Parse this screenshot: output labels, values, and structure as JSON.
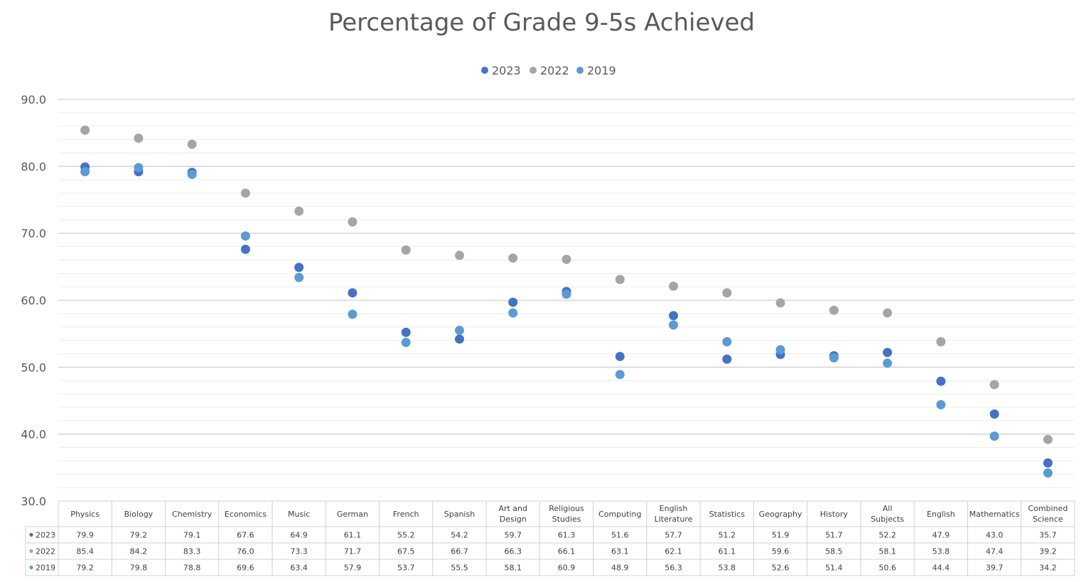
{
  "chart_data": {
    "type": "scatter",
    "title": "Percentage of Grade 9-5s Achieved",
    "ylim": [
      30,
      90
    ],
    "yticks": [
      "30.0",
      "40.0",
      "50.0",
      "60.0",
      "70.0",
      "80.0",
      "90.0"
    ],
    "grid": true,
    "legend_position": "top",
    "categories": [
      "Physics",
      "Biology",
      "Chemistry",
      "Economics",
      "Music",
      "German",
      "French",
      "Spanish",
      "Art and Design",
      "Religious Studies",
      "Computing",
      "English Literature",
      "Statistics",
      "Geography",
      "History",
      "All Subjects",
      "English",
      "Mathematics",
      "Combined Science"
    ],
    "series": [
      {
        "name": "2023",
        "color": "#4472C4",
        "values": [
          79.9,
          79.2,
          79.1,
          67.6,
          64.9,
          61.1,
          55.2,
          54.2,
          59.7,
          61.3,
          51.6,
          57.7,
          51.2,
          51.9,
          51.7,
          52.2,
          47.9,
          43.0,
          35.7
        ],
        "labels": [
          "79.9",
          "79.2",
          "79.1",
          "67.6",
          "64.9",
          "61.1",
          "55.2",
          "54.2",
          "59.7",
          "61.3",
          "51.6",
          "57.7",
          "51.2",
          "51.9",
          "51.7",
          "52.2",
          "47.9",
          "43.0",
          "35.7"
        ]
      },
      {
        "name": "2022",
        "color": "#A5A5A5",
        "values": [
          85.4,
          84.2,
          83.3,
          76.0,
          73.3,
          71.7,
          67.5,
          66.7,
          66.3,
          66.1,
          63.1,
          62.1,
          61.1,
          59.6,
          58.5,
          58.1,
          53.8,
          47.4,
          39.2
        ],
        "labels": [
          "85.4",
          "84.2",
          "83.3",
          "76.0",
          "73.3",
          "71.7",
          "67.5",
          "66.7",
          "66.3",
          "66.1",
          "63.1",
          "62.1",
          "61.1",
          "59.6",
          "58.5",
          "58.1",
          "53.8",
          "47.4",
          "39.2"
        ]
      },
      {
        "name": "2019",
        "color": "#5B9BD5",
        "values": [
          79.2,
          79.8,
          78.8,
          69.6,
          63.4,
          57.9,
          53.7,
          55.5,
          58.1,
          60.9,
          48.9,
          56.3,
          53.8,
          52.6,
          51.4,
          50.6,
          44.4,
          39.7,
          34.2
        ],
        "labels": [
          "79.2",
          "79.8",
          "78.8",
          "69.6",
          "63.4",
          "57.9",
          "53.7",
          "55.5",
          "58.1",
          "60.9",
          "48.9",
          "56.3",
          "53.8",
          "52.6",
          "51.4",
          "50.6",
          "44.4",
          "39.7",
          "34.2"
        ]
      }
    ]
  }
}
